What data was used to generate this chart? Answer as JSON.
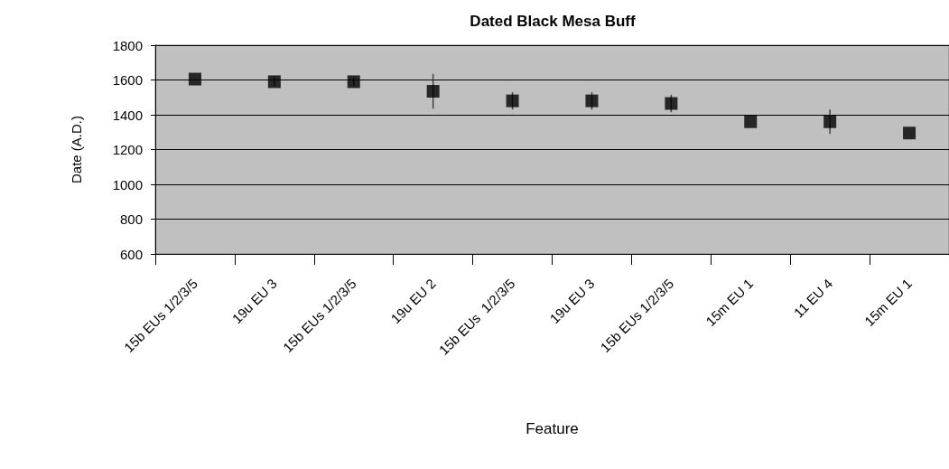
{
  "chart_data": {
    "type": "scatter",
    "title": "Dated Black Mesa Buff",
    "xlabel": "Feature",
    "ylabel": "Date (A.D.)",
    "categories": [
      "15b EUs 1/2/3/5",
      "19u EU 3",
      "15b EUs 1/2/3/5",
      "19u EU 2",
      "15b EUs  1/2/3/5",
      "19u EU 3",
      "15b EUs 1/2/3/5",
      "15m EU 1",
      "11 EU 4",
      "15m EU 1"
    ],
    "values": [
      1605,
      1590,
      1590,
      1535,
      1480,
      1480,
      1465,
      1360,
      1360,
      1295
    ],
    "errors": [
      null,
      25,
      25,
      100,
      50,
      50,
      50,
      null,
      70,
      null
    ],
    "color": "#000000",
    "marker": "square",
    "ylim": [
      600,
      1800
    ],
    "yticks": [
      600,
      800,
      1000,
      1200,
      1400,
      1600,
      1800
    ],
    "grid": "y"
  }
}
